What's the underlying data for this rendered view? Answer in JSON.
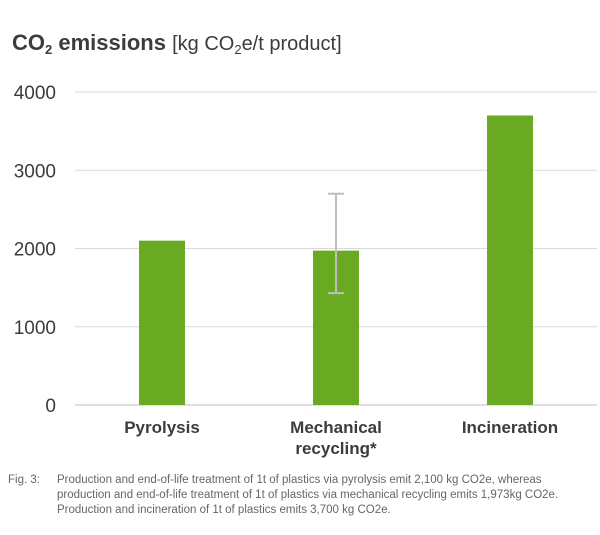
{
  "title": {
    "main": "CO",
    "main_sub": "2",
    "main_rest": " emissions",
    "unit_open": "[kg CO",
    "unit_sub": "2",
    "unit_close": "e/t product]"
  },
  "chart_data": {
    "type": "bar",
    "title": "CO2 emissions [kg CO2e/t product]",
    "xlabel": "",
    "ylabel": "",
    "categories": [
      [
        "Pyrolysis"
      ],
      [
        "Mechanical",
        "recycling*"
      ],
      [
        "Incineration"
      ]
    ],
    "values": [
      2100,
      1973,
      3700
    ],
    "error_bars": [
      null,
      {
        "low": 1430,
        "high": 2700
      },
      null
    ],
    "ylim": [
      0,
      4000
    ],
    "yticks": [
      0,
      1000,
      2000,
      3000,
      4000
    ],
    "grid": true,
    "bar_color": "#6aaa22",
    "grid_color": "#d9d9d9",
    "error_color": "#bfbfbf"
  },
  "caption": {
    "label": "Fig. 3:",
    "text": "Production and end-of-life treatment of 1t of plastics via pyrolysis emit 2,100 kg CO2e, whereas production and end-of-life treatment of 1t of plastics via mechanical recycling emits 1,973kg CO2e. Production and incineration of 1t of plastics emits 3,700 kg CO2e."
  }
}
